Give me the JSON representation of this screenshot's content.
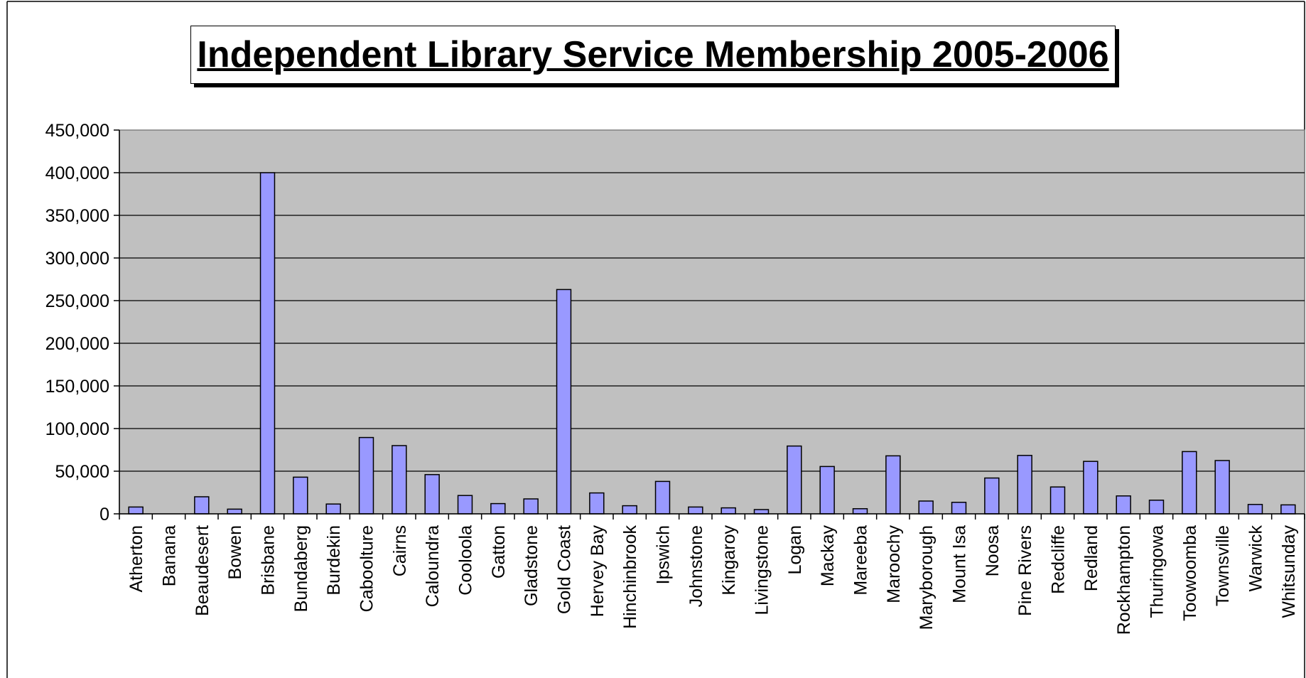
{
  "chart_data": {
    "type": "bar",
    "title": "Independent Library Service Membership 2005-2006",
    "xlabel": "",
    "ylabel": "",
    "ylim": [
      0,
      450000
    ],
    "ytick_labels": [
      "0",
      "50,000",
      "100,000",
      "150,000",
      "200,000",
      "250,000",
      "300,000",
      "350,000",
      "400,000",
      "450,000"
    ],
    "ytick_values": [
      0,
      50000,
      100000,
      150000,
      200000,
      250000,
      300000,
      350000,
      400000,
      450000
    ],
    "grid": true,
    "legend": "none",
    "categories": [
      "Atherton",
      "Banana",
      "Beaudesert",
      "Bowen",
      "Brisbane",
      "Bundaberg",
      "Burdekin",
      "Caboolture",
      "Cairns",
      "Caloundra",
      "Cooloola",
      "Gatton",
      "Gladstone",
      "Gold Coast",
      "Hervey Bay",
      "Hinchinbrook",
      "Ipswich",
      "Johnstone",
      "Kingaroy",
      "Livingstone",
      "Logan",
      "Mackay",
      "Mareeba",
      "Maroochy",
      "Maryborough",
      "Mount Isa",
      "Noosa",
      "Pine Rivers",
      "Redcliffe",
      "Redland",
      "Rockhampton",
      "Thuringowa",
      "Toowoomba",
      "Townsville",
      "Warwick",
      "Whitsunday"
    ],
    "values": [
      8000,
      0,
      20000,
      5500,
      400000,
      43000,
      11500,
      89500,
      80000,
      46000,
      21500,
      12000,
      17500,
      263000,
      24500,
      9500,
      38000,
      8000,
      7000,
      5000,
      79500,
      55500,
      6000,
      68000,
      15000,
      13500,
      42000,
      68500,
      31500,
      61500,
      21000,
      16000,
      73000,
      62500,
      11000,
      10500
    ],
    "colors": {
      "bar_fill": "#9999ff",
      "bar_stroke": "#000000",
      "plot_background": "#c0c0c0",
      "gridline": "#000000"
    }
  }
}
